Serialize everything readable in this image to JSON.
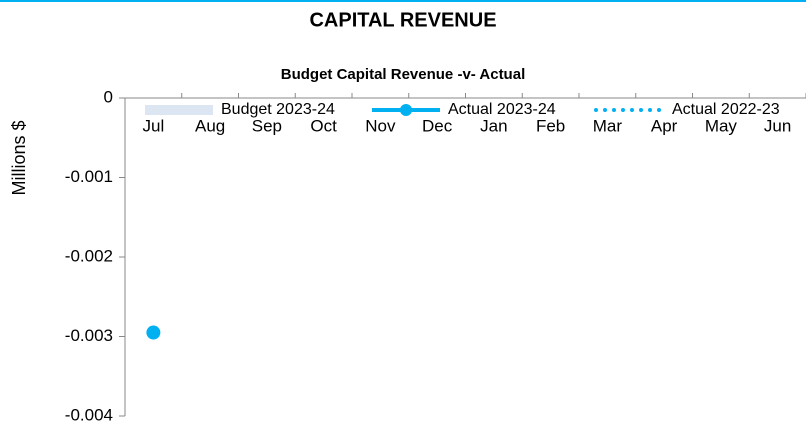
{
  "chart_data": {
    "type": "line",
    "title": "CAPITAL REVENUE",
    "subtitle": "Budget Capital Revenue -v- Actual",
    "y_label": "Millions $",
    "categories": [
      "Jul",
      "Aug",
      "Sep",
      "Oct",
      "Nov",
      "Dec",
      "Jan",
      "Feb",
      "Mar",
      "Apr",
      "May",
      "Jun"
    ],
    "series": [
      {
        "name": "Budget 2023-24",
        "color": "#dce6f2",
        "style": "band",
        "values": [
          null,
          null,
          null,
          null,
          null,
          null,
          null,
          null,
          null,
          null,
          null,
          null
        ]
      },
      {
        "name": "Actual 2023-24",
        "color": "#00b0f0",
        "style": "solid",
        "values": [
          -0.00295,
          null,
          null,
          null,
          null,
          null,
          null,
          null,
          null,
          null,
          null,
          null
        ]
      },
      {
        "name": "Actual 2022-23",
        "color": "#00b0f0",
        "style": "dotted",
        "values": [
          null,
          null,
          null,
          null,
          null,
          null,
          null,
          null,
          null,
          null,
          null,
          null
        ]
      }
    ],
    "ylim": [
      -0.004,
      0
    ],
    "yticks": [
      0,
      -0.001,
      -0.002,
      -0.003,
      -0.004
    ],
    "grid": false,
    "legend": "top"
  }
}
